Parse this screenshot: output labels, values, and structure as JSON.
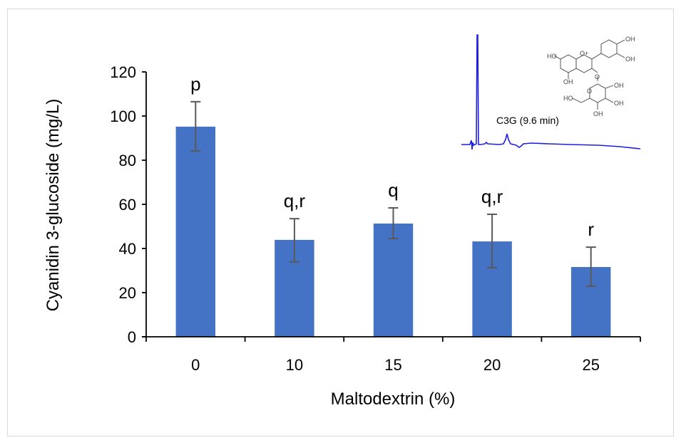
{
  "chart_data": {
    "type": "bar",
    "title": "",
    "xlabel": "Maltodextrin (%)",
    "ylabel": "Cyanidin 3-glucoside (mg/L)",
    "categories": [
      "0",
      "10",
      "15",
      "20",
      "25"
    ],
    "values": [
      95.2,
      43.9,
      51.3,
      43.2,
      31.6
    ],
    "error_upper": [
      106.5,
      53.5,
      58.4,
      55.5,
      40.6
    ],
    "error_lower": [
      84.2,
      33.9,
      44.5,
      31.3,
      22.9
    ],
    "significance_letters": [
      "p",
      "q,r",
      "q",
      "q,r",
      "r"
    ],
    "ylim": [
      0,
      120
    ],
    "yticks": [
      0,
      20,
      40,
      60,
      80,
      100,
      120
    ],
    "ytick_labels": [
      "0",
      "20",
      "40",
      "60",
      "80",
      "100",
      "120"
    ],
    "grid": false,
    "legend": null,
    "bar_color": "#4472c4",
    "error_bar_color": "#595959",
    "inset": {
      "type": "chromatogram",
      "peak_label": "C3G (9.6 min)",
      "line_color": "#1f1fe0",
      "structure_labels": [
        "HO",
        "O+",
        "OH",
        "OH",
        "OH",
        "O",
        "O",
        "OH",
        "HO",
        "OH",
        "OH"
      ]
    }
  }
}
